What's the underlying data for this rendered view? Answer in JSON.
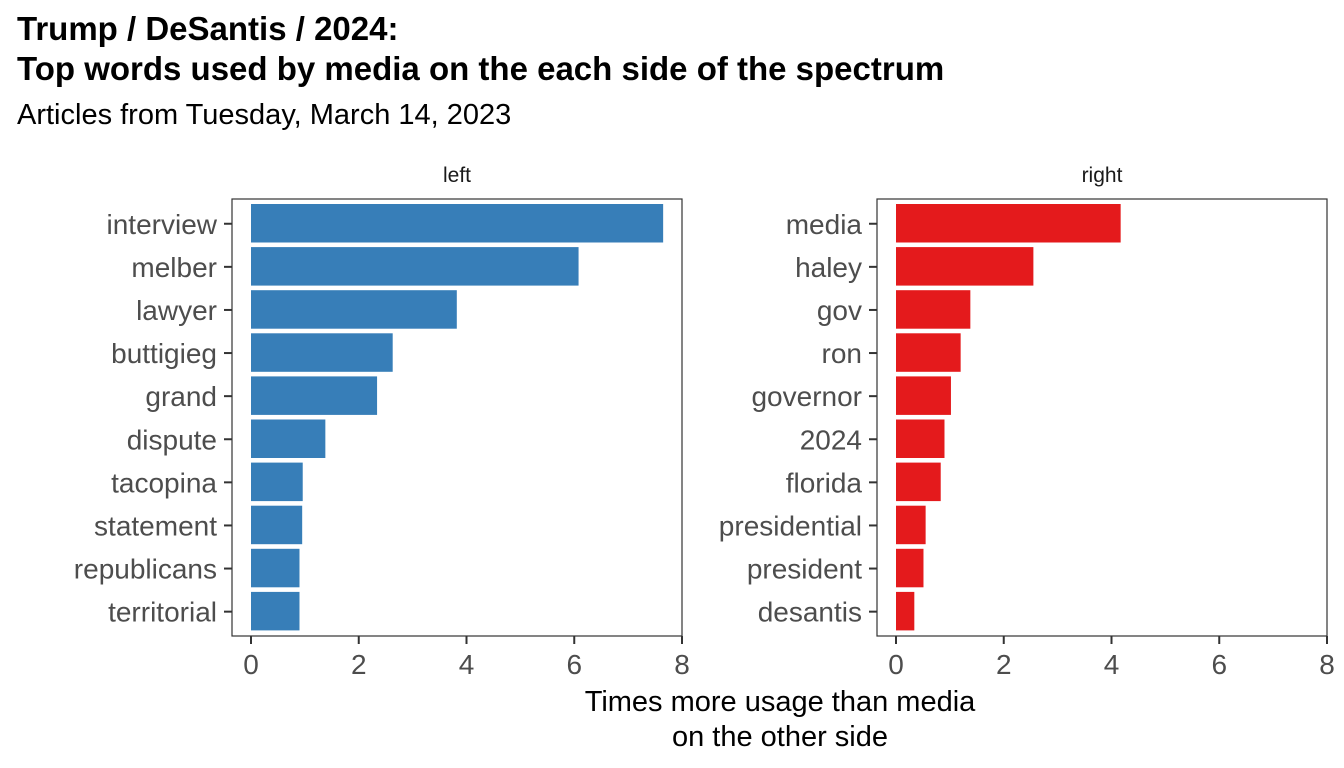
{
  "chart_data": {
    "type": "bar",
    "orientation": "horizontal",
    "title_line1": "Trump / DeSantis / 2024:",
    "title_line2": "Top words used by media on the each side of the spectrum",
    "subtitle": "Articles from Tuesday, March 14, 2023",
    "xlabel_line1": "Times more usage than media",
    "xlabel_line2": "on the other side",
    "ylabel": "",
    "xlim": [
      0,
      8
    ],
    "x_ticks": [
      "0",
      "2",
      "4",
      "6",
      "8"
    ],
    "grid": false,
    "panels": [
      {
        "name": "left",
        "color": "#377EB8",
        "categories": [
          "interview",
          "melber",
          "lawyer",
          "buttigieg",
          "grand",
          "dispute",
          "tacopina",
          "statement",
          "republicans",
          "territorial"
        ],
        "values": [
          7.65,
          6.08,
          3.82,
          2.63,
          2.34,
          1.38,
          0.96,
          0.95,
          0.9,
          0.9
        ]
      },
      {
        "name": "right",
        "color": "#E41A1C",
        "categories": [
          "media",
          "haley",
          "gov",
          "ron",
          "governor",
          "2024",
          "florida",
          "presidential",
          "president",
          "desantis"
        ],
        "values": [
          4.17,
          2.55,
          1.38,
          1.2,
          1.02,
          0.9,
          0.83,
          0.55,
          0.51,
          0.34
        ]
      }
    ]
  }
}
